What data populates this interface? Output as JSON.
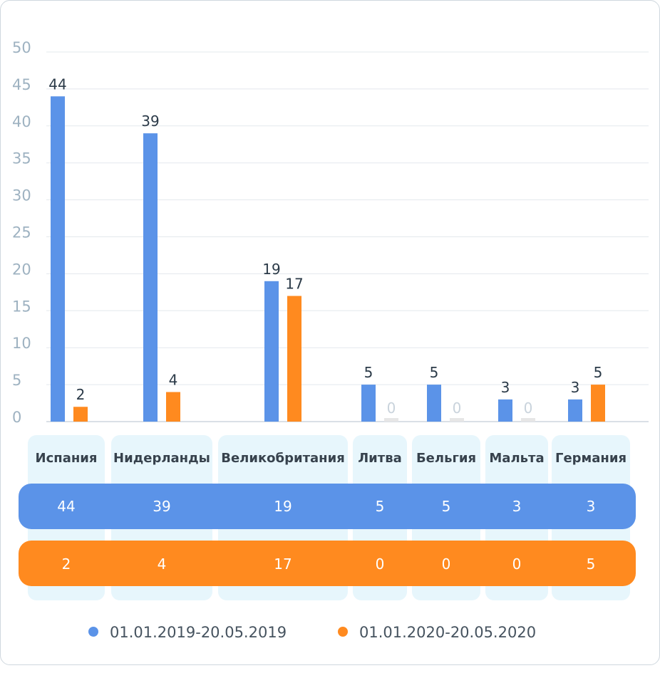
{
  "chart_data": {
    "type": "bar",
    "categories": [
      "Испания",
      "Нидерланды",
      "Великобритания",
      "Литва",
      "Бельгия",
      "Мальта",
      "Германия"
    ],
    "series": [
      {
        "name": "01.01.2019-20.05.2019",
        "color": "#5b93e8",
        "values": [
          44,
          39,
          19,
          5,
          5,
          3,
          3
        ]
      },
      {
        "name": "01.01.2020-20.05.2020",
        "color": "#ff8a1f",
        "values": [
          2,
          4,
          17,
          0,
          0,
          0,
          5
        ]
      }
    ],
    "ylim": [
      0,
      50
    ],
    "yticks": [
      0,
      5,
      10,
      15,
      20,
      25,
      30,
      35,
      40,
      45,
      50
    ],
    "grid": true,
    "legend_position": "bottom",
    "zero_bar_color": "#e6e6e6"
  }
}
